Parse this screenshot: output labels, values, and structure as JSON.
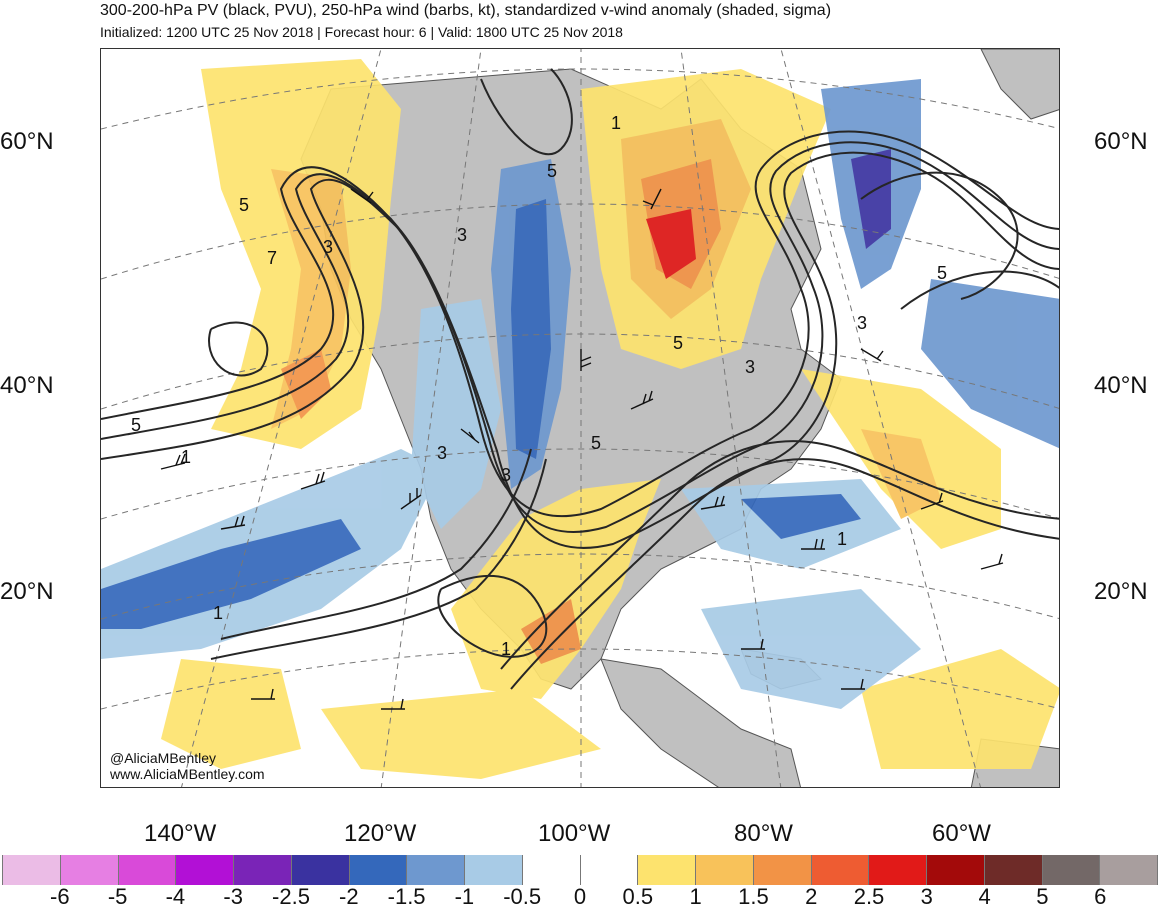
{
  "header": {
    "title": "300-200-hPa PV (black, PVU), 250-hPa wind (barbs, kt), standardized v-wind anomaly (shaded, sigma)",
    "subtitle": "Initialized: 1200 UTC 25 Nov 2018 | Forecast hour: 6 | Valid: 1800 UTC 25 Nov 2018"
  },
  "map": {
    "lat_labels_left": [
      "60°N",
      "40°N",
      "20°N"
    ],
    "lat_labels_right": [
      "60°N",
      "40°N",
      "20°N"
    ],
    "lon_labels": [
      "140°W",
      "120°W",
      "100°W",
      "80°W",
      "60°W"
    ],
    "contour_labels": [
      "5",
      "7",
      "3",
      "5",
      "1",
      "5",
      "3",
      "3",
      "5",
      "3",
      "5",
      "3",
      "1",
      "1",
      "1",
      "5",
      "3",
      "1"
    ],
    "colors": {
      "land": "#c0c0c0",
      "contour": "#262626"
    }
  },
  "credits": {
    "handle": "@AliciaMBentley",
    "url": "www.AliciaMBentley.com"
  },
  "colorbar": {
    "labels": [
      "-6",
      "-5",
      "-4",
      "-3",
      "-2.5",
      "-2",
      "-1.5",
      "-1",
      "-0.5",
      "0",
      "0.5",
      "1",
      "1.5",
      "2",
      "2.5",
      "3",
      "4",
      "5",
      "6"
    ],
    "colors": [
      "#ebbce6",
      "#e67fe3",
      "#d94ad9",
      "#b210d6",
      "#7a24b7",
      "#3a32a0",
      "#3468bb",
      "#6e98cf",
      "#a8cbe6",
      "#ffffff",
      "#ffffff",
      "#fde36e",
      "#f8c25a",
      "#f29346",
      "#ee5c32",
      "#e11a18",
      "#a30a0a",
      "#6e2b28",
      "#736867",
      "#a89e9e"
    ]
  }
}
